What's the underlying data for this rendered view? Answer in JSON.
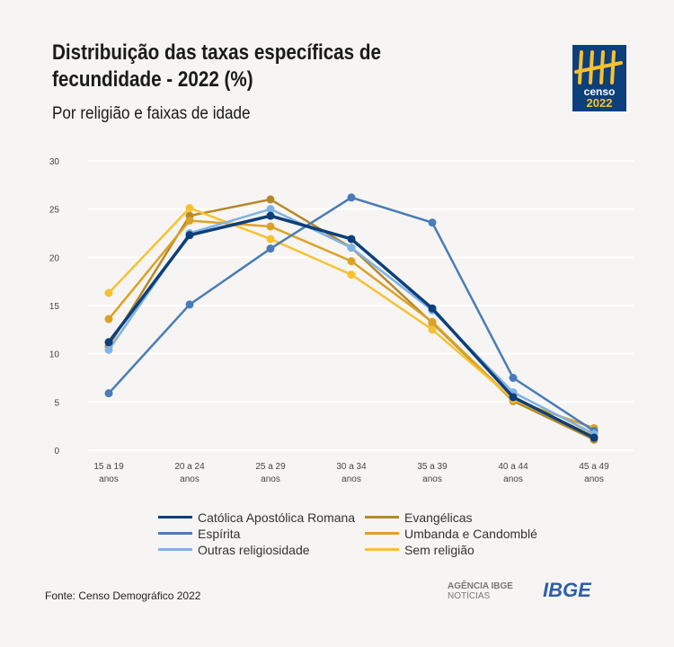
{
  "header": {
    "title": "Distribuição das taxas específicas de fecundidade - 2022 (%)",
    "subtitle": "Por religião e faixas de idade"
  },
  "logo": {
    "text": "censo 2022"
  },
  "footer": {
    "source": "Fonte: Censo Demográfico 2022",
    "agencia": "AGÊNCIA IBGE",
    "noticias": "NOTÍCIAS",
    "ibge": "IBGE"
  },
  "chart_data": {
    "type": "line",
    "categories": [
      "15 a 19 anos",
      "20 a 24 anos",
      "25 a 29 anos",
      "30 a 34 anos",
      "35 a 39 anos",
      "40 a 44 anos",
      "45 a 49 anos"
    ],
    "category_lines": [
      [
        "15 a 19",
        "anos"
      ],
      [
        "20 a 24",
        "anos"
      ],
      [
        "25 a 29",
        "anos"
      ],
      [
        "30 a 34",
        "anos"
      ],
      [
        "35 a 39",
        "anos"
      ],
      [
        "40 a 44",
        "anos"
      ],
      [
        "45 a 49",
        "anos"
      ]
    ],
    "ylim": [
      0,
      30
    ],
    "yticks": [
      0,
      5,
      10,
      15,
      20,
      25,
      30
    ],
    "grid": true,
    "legend_position": "bottom",
    "series": [
      {
        "name": "Evangélicas",
        "color": "#b5892a",
        "values": [
          10.8,
          24.3,
          26.0,
          21.0,
          13.2,
          5.1,
          1.1
        ]
      },
      {
        "name": "Umbanda e Candomblé",
        "color": "#dca225",
        "values": [
          13.6,
          23.8,
          23.2,
          19.6,
          13.3,
          5.2,
          2.3
        ]
      },
      {
        "name": "Sem religião",
        "color": "#f7c131",
        "values": [
          16.3,
          25.1,
          21.9,
          18.2,
          12.5,
          5.3,
          1.5
        ]
      },
      {
        "name": "Espírita",
        "color": "#4a7cb8",
        "values": [
          5.9,
          15.1,
          20.9,
          26.2,
          23.6,
          7.5,
          2.0
        ]
      },
      {
        "name": "Outras religiosidade",
        "color": "#7fb2e5",
        "values": [
          10.4,
          22.5,
          25.0,
          21.0,
          14.5,
          6.0,
          1.7
        ]
      },
      {
        "name": "Católica Apostólica Romana",
        "color": "#0d3f7a",
        "values": [
          11.2,
          22.3,
          24.3,
          21.9,
          14.7,
          5.5,
          1.3
        ]
      }
    ],
    "legend_order": [
      5,
      0,
      3,
      1,
      4,
      2
    ]
  }
}
